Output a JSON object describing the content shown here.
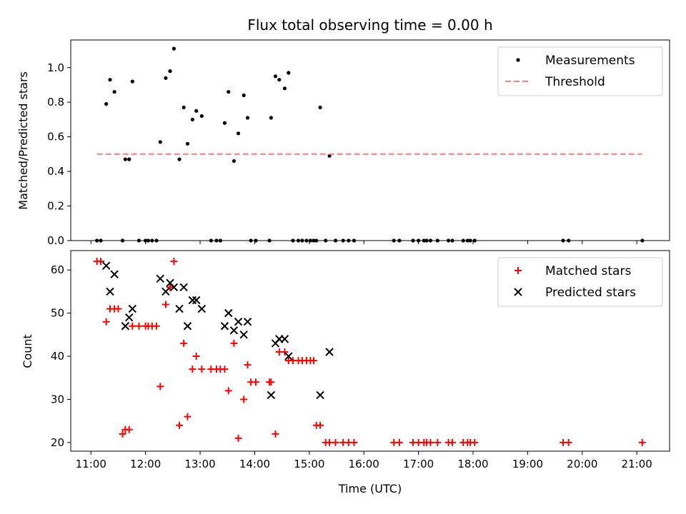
{
  "chart_data": [
    {
      "type": "scatter",
      "title": "Flux total observing time = 0.00 h",
      "ylabel": "Matched/Predicted stars",
      "ylim": [
        0,
        1.16
      ],
      "yticks": [
        0.0,
        0.2,
        0.4,
        0.6,
        0.8,
        1.0
      ],
      "xlim": [
        10.63,
        21.6
      ],
      "legend_position": "top-right",
      "series": [
        {
          "name": "Measurements",
          "style": "dot",
          "color": "#000000",
          "x": [
            11.11,
            11.18,
            11.28,
            11.35,
            11.43,
            11.58,
            11.63,
            11.7,
            11.76,
            11.88,
            12.0,
            12.05,
            12.12,
            12.2,
            12.27,
            12.37,
            12.45,
            12.52,
            12.62,
            12.7,
            12.77,
            12.86,
            12.93,
            13.03,
            13.2,
            13.3,
            13.37,
            13.45,
            13.52,
            13.62,
            13.7,
            13.8,
            13.87,
            13.93,
            14.02,
            14.27,
            14.3,
            14.38,
            14.45,
            14.55,
            14.62,
            14.7,
            14.8,
            14.87,
            14.95,
            15.02,
            15.08,
            15.13,
            15.2,
            15.3,
            15.37,
            15.48,
            15.62,
            15.72,
            15.82,
            16.55,
            16.65,
            16.9,
            17.0,
            17.1,
            17.15,
            17.22,
            17.35,
            17.55,
            17.62,
            17.82,
            17.9,
            17.95,
            18.03,
            19.65,
            19.75,
            21.1
          ],
          "y": [
            0,
            0,
            0.79,
            0.93,
            0.86,
            0,
            0.47,
            0.47,
            0.92,
            0,
            0,
            0,
            0,
            0,
            0.57,
            0.94,
            0.98,
            1.11,
            0.47,
            0.77,
            0.56,
            0.7,
            0.75,
            0.72,
            0,
            0,
            0,
            0.68,
            0.86,
            0.46,
            0.62,
            0.84,
            0.71,
            0,
            0,
            0,
            0.71,
            0.95,
            0.93,
            0.88,
            0.97,
            0,
            0,
            0,
            0,
            0,
            0,
            0,
            0.77,
            0,
            0.49,
            0,
            0,
            0,
            0,
            0,
            0,
            0,
            0,
            0,
            0,
            0,
            0,
            0,
            0,
            0,
            0,
            0,
            0,
            0,
            0,
            0
          ]
        },
        {
          "name": "Threshold",
          "style": "dashed",
          "color": "#ff7f7f",
          "x": [
            11.11,
            21.1
          ],
          "y": [
            0.5,
            0.5
          ]
        }
      ]
    },
    {
      "type": "scatter",
      "xlabel": "Time (UTC)",
      "ylabel": "Count",
      "ylim": [
        18,
        64.5
      ],
      "yticks": [
        20,
        30,
        40,
        50,
        60
      ],
      "xlim": [
        10.63,
        21.6
      ],
      "xticks": [
        11,
        12,
        13,
        14,
        15,
        16,
        17,
        18,
        19,
        20,
        21
      ],
      "xticklabels": [
        "11:00",
        "12:00",
        "13:00",
        "14:00",
        "15:00",
        "16:00",
        "17:00",
        "18:00",
        "19:00",
        "20:00",
        "21:00"
      ],
      "legend_position": "top-right",
      "series": [
        {
          "name": "Matched stars",
          "style": "plus",
          "color": "#ff0000",
          "x": [
            11.11,
            11.18,
            11.28,
            11.35,
            11.43,
            11.5,
            11.58,
            11.63,
            11.7,
            11.76,
            11.88,
            12.0,
            12.05,
            12.12,
            12.2,
            12.27,
            12.37,
            12.45,
            12.52,
            12.62,
            12.7,
            12.77,
            12.86,
            12.93,
            13.03,
            13.2,
            13.3,
            13.37,
            13.45,
            13.52,
            13.62,
            13.7,
            13.8,
            13.87,
            13.93,
            14.02,
            14.27,
            14.3,
            14.38,
            14.45,
            14.55,
            14.62,
            14.7,
            14.8,
            14.87,
            14.95,
            15.02,
            15.08,
            15.13,
            15.2,
            15.3,
            15.37,
            15.48,
            15.62,
            15.72,
            15.82,
            16.55,
            16.65,
            16.9,
            17.0,
            17.1,
            17.15,
            17.22,
            17.35,
            17.55,
            17.62,
            17.82,
            17.9,
            17.95,
            18.03,
            19.65,
            19.75,
            21.1
          ],
          "y": [
            62,
            62,
            48,
            51,
            51,
            51,
            22,
            23,
            23,
            47,
            47,
            47,
            47,
            47,
            47,
            33,
            52,
            56,
            62,
            24,
            43,
            26,
            37,
            40,
            37,
            37,
            37,
            37,
            37,
            32,
            43,
            21,
            30,
            38,
            34,
            34,
            34,
            34,
            22,
            41,
            41,
            39,
            39,
            39,
            39,
            39,
            39,
            39,
            24,
            24,
            20,
            20,
            20,
            20,
            20,
            20,
            20,
            20,
            20,
            20,
            20,
            20,
            20,
            20,
            20,
            20,
            20,
            20,
            20,
            20,
            20,
            20,
            20
          ]
        },
        {
          "name": "Predicted stars",
          "style": "x",
          "color": "#000000",
          "x": [
            11.28,
            11.35,
            11.43,
            11.63,
            11.7,
            11.76,
            12.27,
            12.37,
            12.45,
            12.52,
            12.62,
            12.7,
            12.77,
            12.86,
            12.93,
            13.03,
            13.45,
            13.52,
            13.62,
            13.7,
            13.8,
            13.87,
            14.3,
            14.38,
            14.45,
            14.55,
            14.62,
            15.2,
            15.37
          ],
          "y": [
            61,
            55,
            59,
            47,
            49,
            51,
            58,
            55,
            57,
            56,
            51,
            56,
            47,
            53,
            53,
            51,
            47,
            50,
            46,
            48,
            45,
            48,
            31,
            43,
            44,
            44,
            40,
            31,
            41
          ]
        }
      ]
    }
  ]
}
